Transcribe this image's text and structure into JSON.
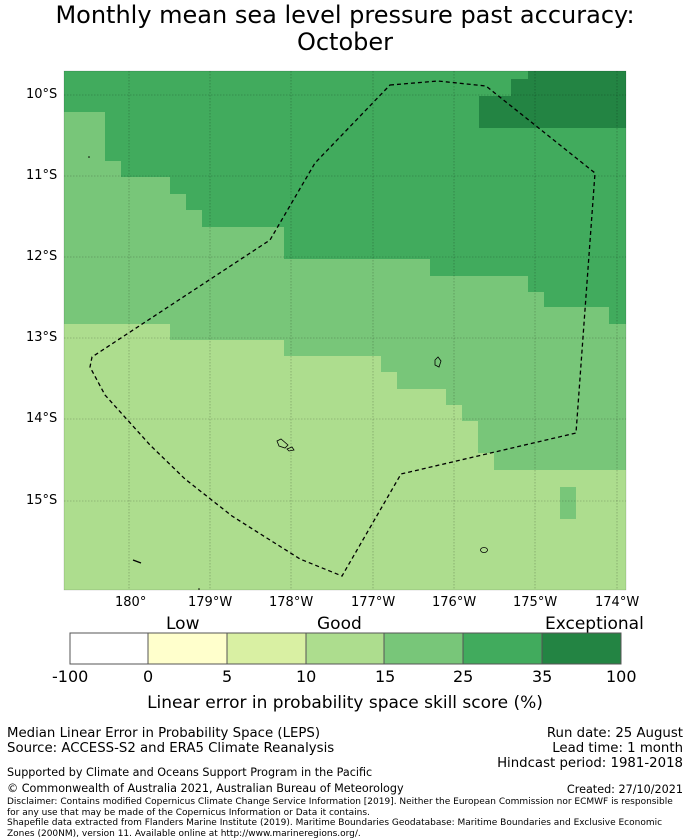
{
  "title": {
    "line1": "Monthly mean sea level pressure past accuracy:",
    "line2": "October"
  },
  "map": {
    "lat_labels": [
      "10°S",
      "11°S",
      "12°S",
      "13°S",
      "14°S",
      "15°S"
    ],
    "lon_labels": [
      "180°",
      "179°W",
      "178°W",
      "177°W",
      "176°W",
      "175°W",
      "174°W"
    ],
    "colors": {
      "low": "#ffffff",
      "c0_5": "#ffffcc",
      "c5_10": "#d9f0a3",
      "c10_15": "#addd8e",
      "c15_25": "#78c679",
      "c25_35": "#41ab5d",
      "c35_100": "#238443"
    }
  },
  "colorbar": {
    "category_labels": [
      "Low",
      "Good",
      "Exceptional"
    ],
    "ticks": [
      "-100",
      "0",
      "5",
      "10",
      "15",
      "25",
      "35",
      "100"
    ],
    "title": "Linear error in probability space skill score (%)"
  },
  "footer": {
    "left1": "Median Linear Error in Probability Space (LEPS)",
    "left2": "Source: ACCESS-S2 and ERA5 Climate Reanalysis",
    "right1": "Run date: 25 August",
    "right2": "Lead time: 1 month",
    "right3": "Hindcast period: 1981-2018",
    "support": "Supported by Climate and Oceans Support Program in the Pacific",
    "copyright": "© Commonwealth of Australia 2021, Australian Bureau of Meteorology",
    "created": "Created: 27/10/2021",
    "disclaimer": "Disclaimer: Contains modified Copernicus Climate Change Service Information [2019]. Neither the European Commission nor ECMWF is responsible for any use that may be made of the Copernicus Information or Data it contains.",
    "shapefile": "Shapefile data extracted from Flanders Marine Institute (2019). Maritime Boundaries Geodatabase: Maritime Boundaries and Exclusive Economic Zones (200NM), version 11. Available online at http://www.marineregions.org/."
  }
}
